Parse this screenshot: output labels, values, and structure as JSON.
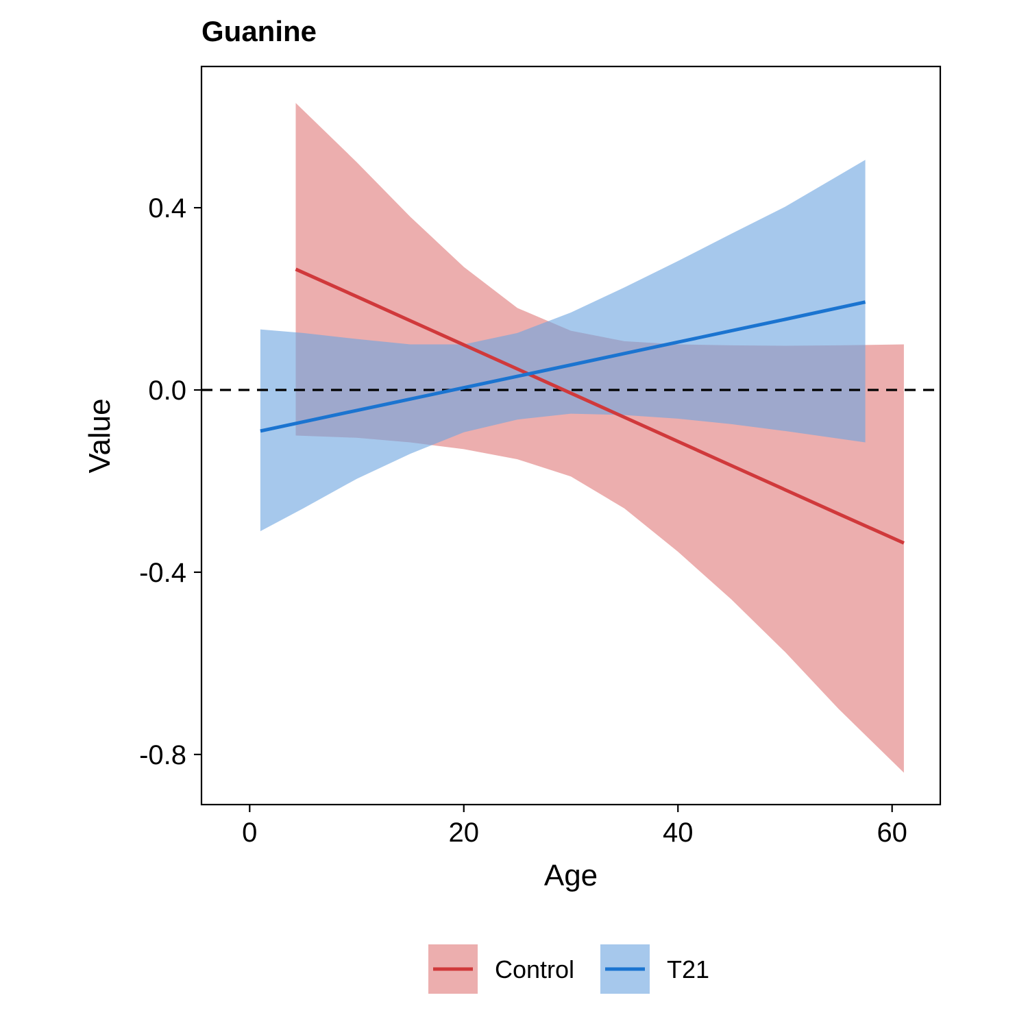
{
  "chart_data": {
    "type": "line",
    "title": "Guanine",
    "xlabel": "Age",
    "ylabel": "Value",
    "xlim": [
      -4.5,
      64.5
    ],
    "ylim": [
      -0.91,
      0.71
    ],
    "x_ticks": [
      0,
      20,
      40,
      60
    ],
    "x_tick_labels": [
      "0",
      "20",
      "40",
      "60"
    ],
    "y_ticks": [
      0.4,
      0.0,
      -0.4,
      -0.8
    ],
    "y_tick_labels": [
      "0.4",
      "0.0",
      "-0.4",
      "-0.8"
    ],
    "reference_line": {
      "y": 0.0,
      "style": "dashed",
      "color": "#000000"
    },
    "grid": false,
    "legend": {
      "position": "bottom",
      "orientation": "horizontal"
    },
    "series": [
      {
        "name": "Control",
        "line_color": "#d0393b",
        "band_color": "#e07878",
        "x": [
          4.3,
          10,
          15,
          20,
          25,
          30,
          35,
          40,
          45,
          50,
          55,
          61.1
        ],
        "y": [
          0.265,
          0.205,
          0.152,
          0.099,
          0.046,
          -0.007,
          -0.06,
          -0.113,
          -0.166,
          -0.219,
          -0.272,
          -0.336
        ],
        "lower": [
          -0.1,
          -0.105,
          -0.115,
          -0.13,
          -0.152,
          -0.19,
          -0.26,
          -0.355,
          -0.46,
          -0.575,
          -0.7,
          -0.84
        ],
        "upper": [
          0.63,
          0.5,
          0.38,
          0.27,
          0.18,
          0.13,
          0.107,
          0.1,
          0.098,
          0.097,
          0.098,
          0.1
        ]
      },
      {
        "name": "T21",
        "line_color": "#1b74d0",
        "band_color": "#6aa3df",
        "x": [
          1,
          5,
          10,
          15,
          20,
          25,
          30,
          35,
          40,
          45,
          50,
          57.5
        ],
        "y": [
          -0.09,
          -0.07,
          -0.045,
          -0.02,
          0.005,
          0.03,
          0.055,
          0.08,
          0.105,
          0.13,
          0.155,
          0.193
        ],
        "lower": [
          -0.31,
          -0.26,
          -0.195,
          -0.14,
          -0.093,
          -0.065,
          -0.052,
          -0.055,
          -0.063,
          -0.075,
          -0.09,
          -0.115
        ],
        "upper": [
          0.133,
          0.125,
          0.112,
          0.1,
          0.1,
          0.125,
          0.17,
          0.225,
          0.283,
          0.343,
          0.402,
          0.505
        ]
      }
    ]
  }
}
